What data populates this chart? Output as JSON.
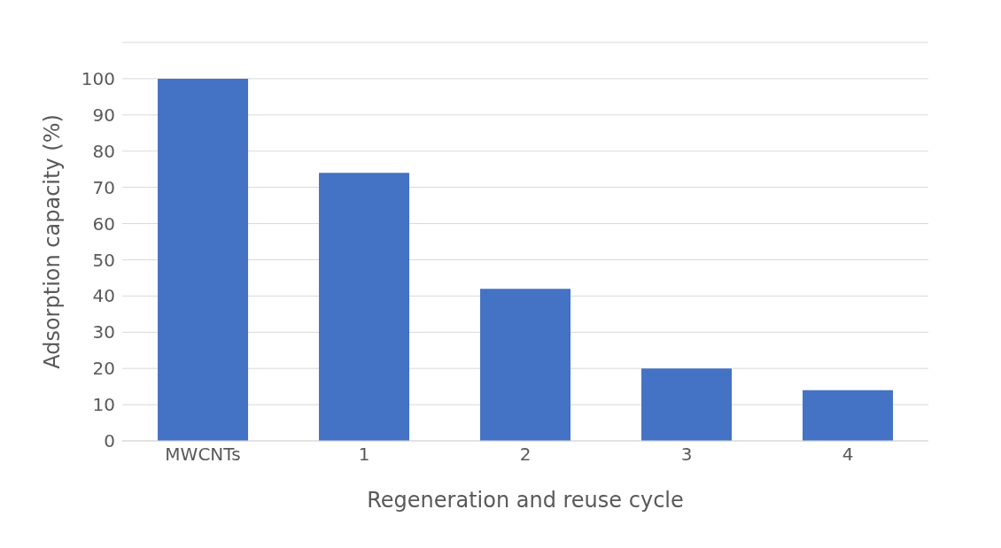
{
  "chart_data": {
    "type": "bar",
    "xlabel": "Regeneration and reuse cycle",
    "ylabel": "Adsorption capacity (%)",
    "categories": [
      "MWCNTs",
      "1",
      "2",
      "3",
      "4"
    ],
    "values": [
      100,
      74,
      42,
      20,
      14
    ],
    "color": "#4472c4",
    "ylim": [
      0,
      110
    ],
    "yticks": [
      0,
      10,
      20,
      30,
      40,
      50,
      60,
      70,
      80,
      90,
      100,
      {
        "value": 110,
        "label": null
      }
    ],
    "grid": "y",
    "legend": false
  }
}
